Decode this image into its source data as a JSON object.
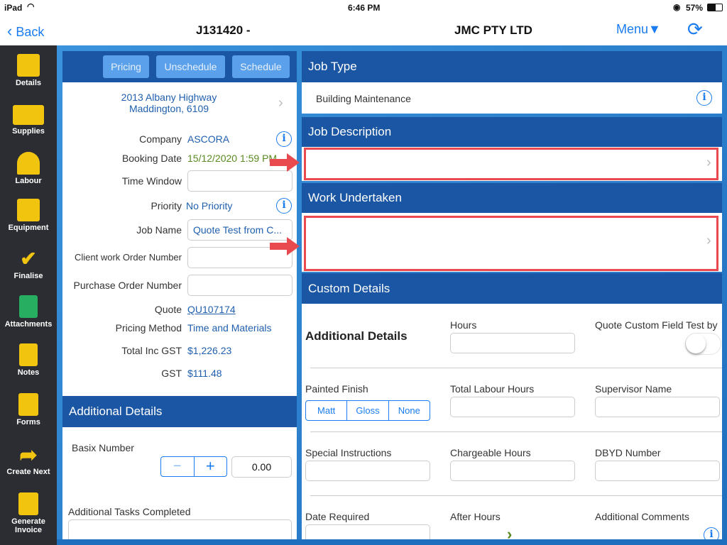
{
  "status": {
    "device": "iPad",
    "time": "6:46 PM",
    "battery": "57%"
  },
  "nav": {
    "back": "Back",
    "job": "J131420 -",
    "company": "JMC PTY LTD",
    "menu": "Menu▼"
  },
  "sidebar": [
    {
      "label": "Details"
    },
    {
      "label": "Supplies"
    },
    {
      "label": "Labour"
    },
    {
      "label": "Equipment"
    },
    {
      "label": "Finalise"
    },
    {
      "label": "Attachments"
    },
    {
      "label": "Notes"
    },
    {
      "label": "Forms"
    },
    {
      "label": "Create Next"
    },
    {
      "label": "Generate Invoice"
    }
  ],
  "left": {
    "buttons": {
      "pricing": "Pricing",
      "unschedule": "Unschedule",
      "schedule": "Schedule"
    },
    "address1": "2013 Albany Highway",
    "address2": "Maddington, 6109",
    "company_label": "Company",
    "company": "ASCORA",
    "booking_label": "Booking Date",
    "booking": "15/12/2020 1:59 PM",
    "window_label": "Time Window",
    "priority_label": "Priority",
    "priority": "No Priority",
    "jobname_label": "Job Name",
    "jobname": "Quote Test from C...",
    "client_label": "Client work Order Number",
    "po_label": "Purchase Order Number",
    "quote_label": "Quote",
    "quote": "QU107174",
    "pricing_label": "Pricing Method",
    "pricing": "Time and Materials",
    "total_label": "Total Inc GST",
    "total": "$1,226.23",
    "gst_label": "GST",
    "gst": "$111.48",
    "additional_header": "Additional Details",
    "basix_label": "Basix Number",
    "basix_value": "0.00",
    "tasks_label": "Additional Tasks Completed"
  },
  "right": {
    "jobtype_header": "Job Type",
    "jobtype": "Building Maintenance",
    "desc_header": "Job Description",
    "work_header": "Work Undertaken",
    "custom_header": "Custom Details",
    "additional": "Additional Details",
    "hours": "Hours",
    "quote_custom": "Quote Custom Field Test by",
    "quote_custom_on": false,
    "painted": "Painted Finish",
    "finish_options": [
      "Matt",
      "Gloss",
      "None"
    ],
    "total_labour": "Total Labour Hours",
    "supervisor": "Supervisor Name",
    "special": "Special Instructions",
    "chargeable": "Chargeable Hours",
    "dbyd": "DBYD Number",
    "date_required": "Date Required",
    "after_hours": "After Hours",
    "comments": "Additional Comments"
  },
  "colors": {
    "accent": "#1a7cf0",
    "header": "#1a56a3",
    "highlight": "#e84a4f",
    "sidebar": "#2c2d33"
  }
}
